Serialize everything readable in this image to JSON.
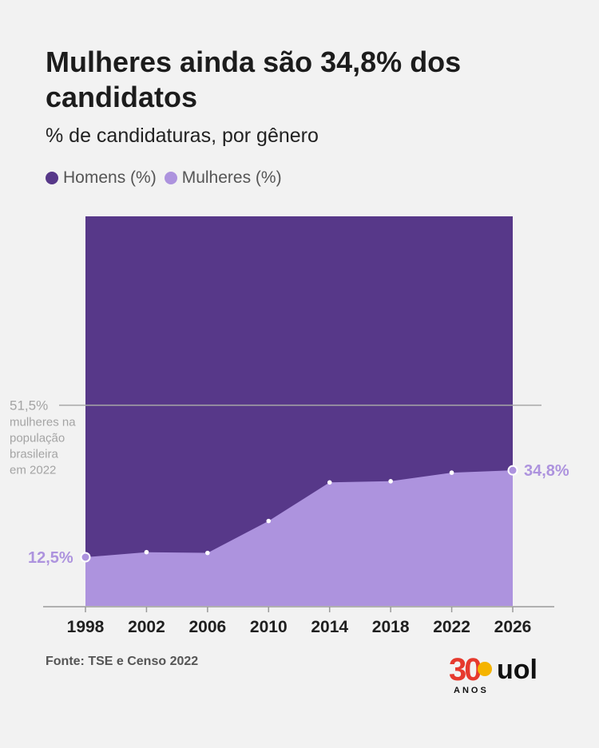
{
  "title": "Mulheres ainda são 34,8% dos candidatos",
  "subtitle": "% de candidaturas, por gênero",
  "legend": [
    {
      "label": "Homens (%)",
      "color": "#573889"
    },
    {
      "label": "Mulheres (%)",
      "color": "#ad93de"
    }
  ],
  "source": "Fonte: TSE e Censo 2022",
  "logo": {
    "number": "30",
    "word": "uol",
    "sub": "ANOS"
  },
  "chart_data": {
    "type": "area",
    "stacked": true,
    "x": [
      1998,
      2002,
      2006,
      2010,
      2014,
      2018,
      2022,
      2026
    ],
    "series": [
      {
        "name": "Homens (%)",
        "values": [
          87.5,
          86.2,
          86.4,
          78.2,
          68.3,
          68.0,
          65.8,
          65.2
        ],
        "color": "#573889"
      },
      {
        "name": "Mulheres (%)",
        "values": [
          12.5,
          13.8,
          13.6,
          21.8,
          31.7,
          32.0,
          34.2,
          34.8
        ],
        "color": "#ad93de"
      }
    ],
    "ylim": [
      0,
      100
    ],
    "reference_line": {
      "value": 51.5,
      "label": "51,5%",
      "note": [
        "mulheres na",
        "população",
        "brasileira",
        "em 2022"
      ]
    },
    "start_label": "12,5%",
    "end_label": "34,8%",
    "grid": false
  }
}
